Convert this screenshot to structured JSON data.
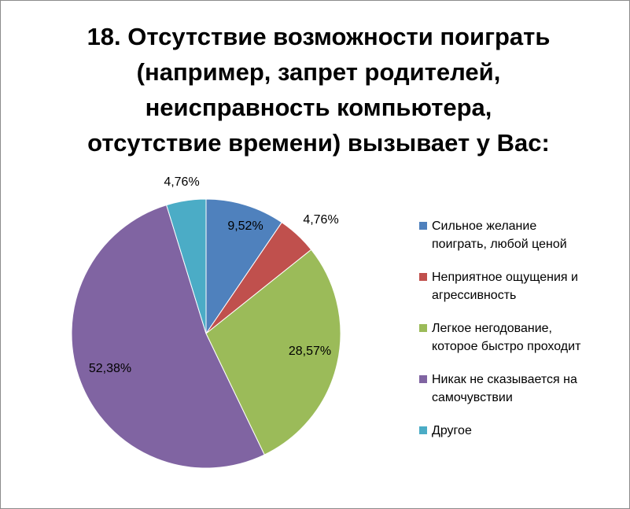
{
  "chart_data": {
    "type": "pie",
    "title_lines": [
      "18. Отсутствие возможности поиграть",
      "(например, запрет родителей,",
      "неисправность компьютера,",
      "отсутствие времени) вызывает у Вас:"
    ],
    "slices": [
      {
        "name": "Сильное желание поиграть, любой ценой",
        "legend_lines": [
          "Сильное желание",
          "поиграть, любой ценой"
        ],
        "value": 9.52,
        "label": "9,52%",
        "color": "#4f81bd"
      },
      {
        "name": "Неприятное ощущения и агрессивность",
        "legend_lines": [
          "Неприятное ощущения и",
          "агрессивность"
        ],
        "value": 4.76,
        "label": "4,76%",
        "color": "#c0504d"
      },
      {
        "name": "Легкое негодование, которое быстро проходит",
        "legend_lines": [
          "Легкое негодование,",
          "которое быстро проходит"
        ],
        "value": 28.57,
        "label": "28,57%",
        "color": "#9bbb59"
      },
      {
        "name": "Никак не сказывается на самочувствии",
        "legend_lines": [
          "Никак не сказывается на",
          "самочувствии"
        ],
        "value": 52.38,
        "label": "52,38%",
        "color": "#8064a2"
      },
      {
        "name": "Другое",
        "legend_lines": [
          "Другое"
        ],
        "value": 4.76,
        "label": "4,76%",
        "color": "#4bacc6"
      }
    ],
    "legend_position": "right"
  }
}
